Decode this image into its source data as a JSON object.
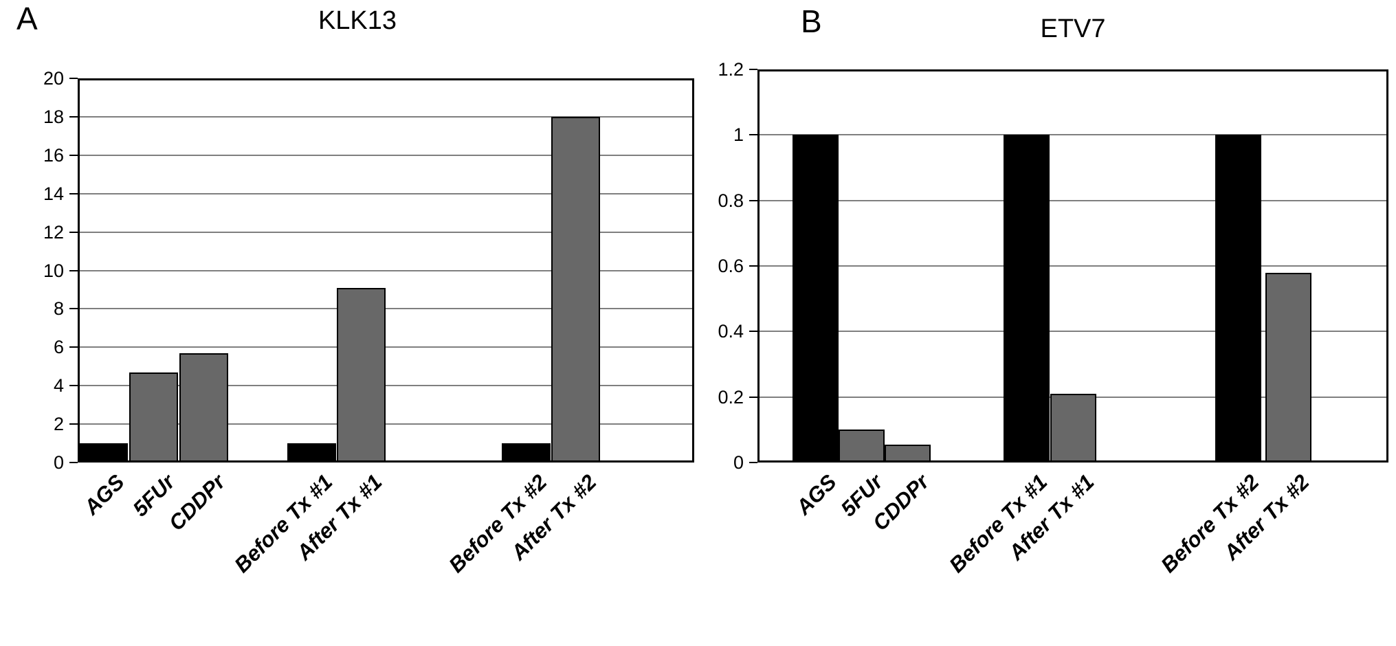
{
  "colors": {
    "bar_black": "#000000",
    "bar_gray": "#686868",
    "bar_border": "#000000",
    "gridline": "#7f7f7f",
    "axis": "#000000",
    "background": "#ffffff"
  },
  "chart_data": [
    {
      "type": "bar",
      "panel_label": "A",
      "title": "KLK13",
      "categories": [
        "AGS",
        "5FUr",
        "CDDPr",
        "Before Tx #1",
        "After Tx #1",
        "Before Tx #2",
        "After Tx #2"
      ],
      "values": [
        1,
        4.7,
        5.7,
        1,
        9.1,
        1,
        18
      ],
      "bar_colors": [
        "black",
        "gray",
        "gray",
        "black",
        "gray",
        "black",
        "gray"
      ],
      "ylabel": "",
      "xlabel": "",
      "ylim": [
        0,
        20
      ],
      "ytick_step": 2,
      "ytick_labels": [
        "0",
        "2",
        "4",
        "6",
        "8",
        "10",
        "12",
        "14",
        "16",
        "18",
        "20"
      ],
      "grid": true,
      "legend": false
    },
    {
      "type": "bar",
      "panel_label": "B",
      "title": "ETV7",
      "categories": [
        "AGS",
        "5FUr",
        "CDDPr",
        "Before Tx #1",
        "After Tx #1",
        "Before Tx #2",
        "After Tx #2"
      ],
      "values": [
        1,
        0.1,
        0.055,
        1,
        0.21,
        1,
        0.58
      ],
      "bar_colors": [
        "black",
        "gray",
        "gray",
        "black",
        "gray",
        "black",
        "gray"
      ],
      "ylabel": "",
      "xlabel": "",
      "ylim": [
        0,
        1.2
      ],
      "ytick_step": 0.2,
      "ytick_labels": [
        "0",
        "0.2",
        "0.4",
        "0.6",
        "0.8",
        "1",
        "1.2"
      ],
      "grid": true,
      "legend": false
    }
  ]
}
